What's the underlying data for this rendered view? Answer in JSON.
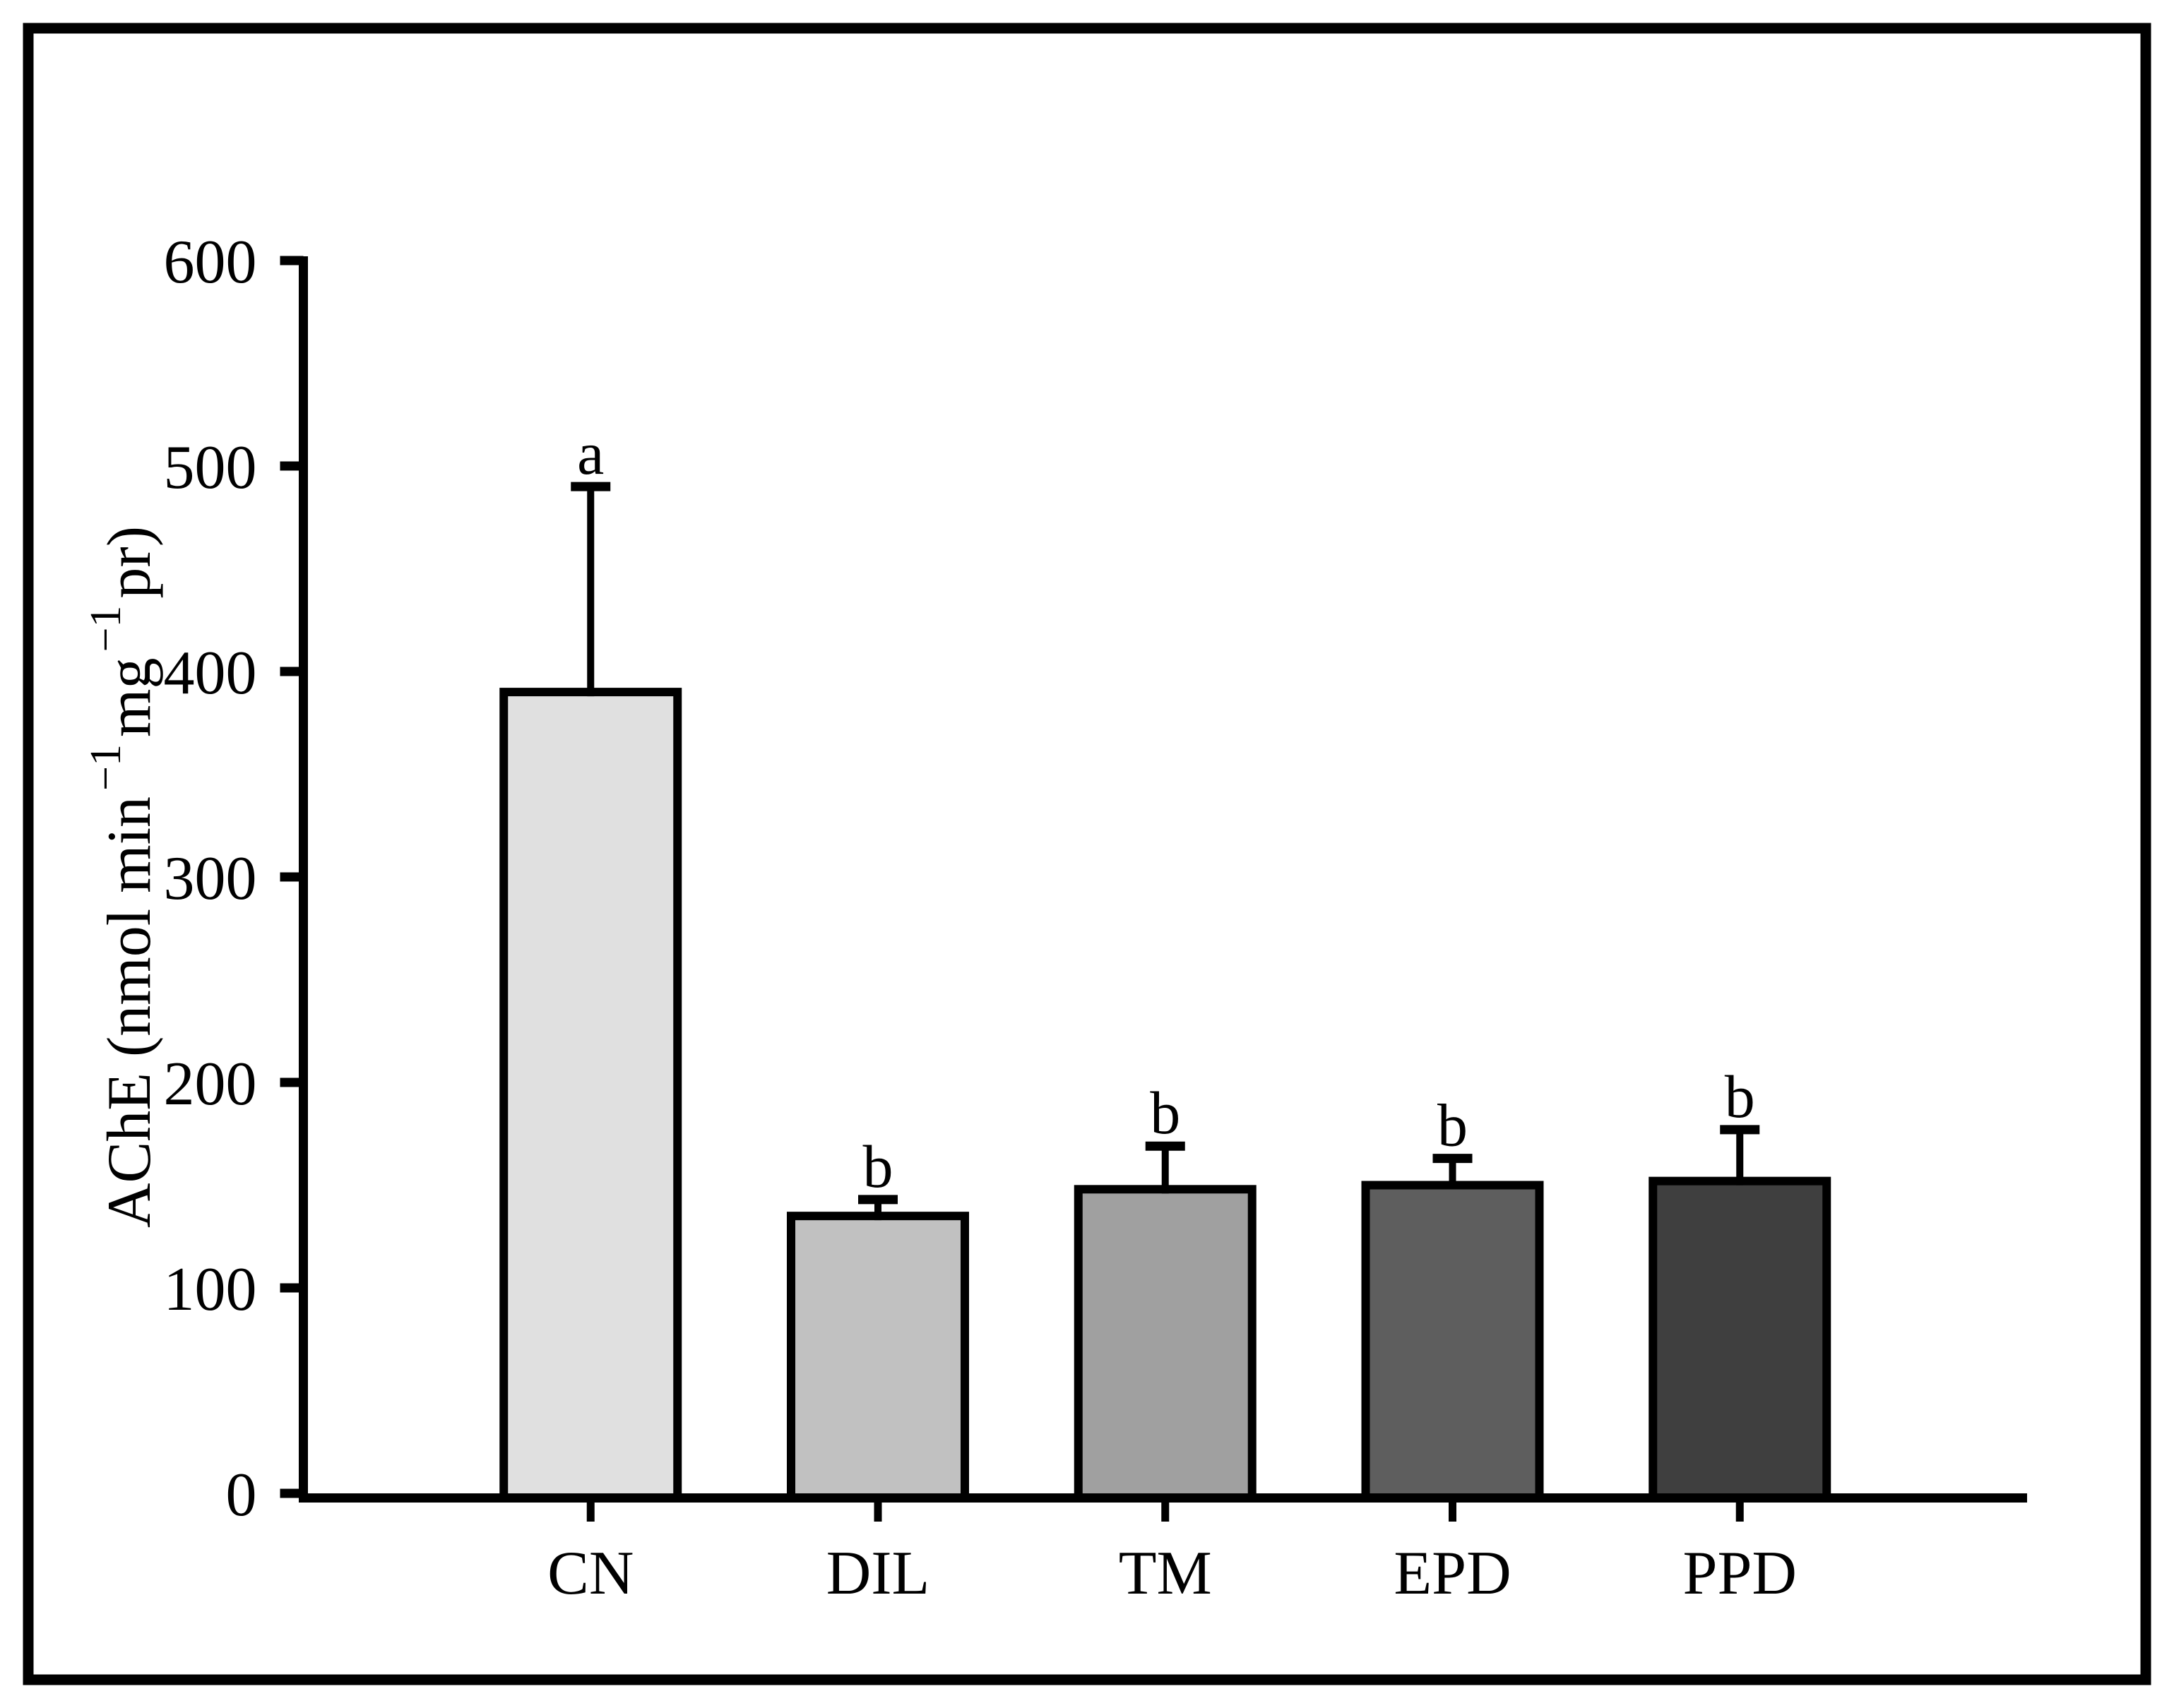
{
  "figure": {
    "background_color": "#ffffff",
    "border_color": "#000000"
  },
  "chart_data": {
    "type": "bar",
    "title": "",
    "categories": [
      "CN",
      "DIL",
      "TM",
      "EPD",
      "PPD"
    ],
    "values": [
      390,
      135,
      148,
      150,
      152
    ],
    "errors_up": [
      100,
      8,
      21,
      13,
      25
    ],
    "sig_letters": [
      "a",
      "b",
      "b",
      "b",
      "b"
    ],
    "bar_fill_colors": [
      "#e0e0e0",
      "#c1c1c1",
      "#a0a0a0",
      "#5e5e5e",
      "#3f3f3f"
    ],
    "bar_edge_color": "#000000",
    "axis_color": "#000000",
    "text_color": "#000000",
    "ylabel_plain": "AChE (nmol min−1 mg−1 pr)",
    "ylabel_parts": [
      {
        "text": "AChE (nmol min",
        "sup": false
      },
      {
        "text": "−1",
        "sup": true
      },
      {
        "text": "mg",
        "sup": false
      },
      {
        "text": "−1",
        "sup": true
      },
      {
        "text": "pr)",
        "sup": false
      }
    ],
    "yticks": [
      0,
      100,
      200,
      300,
      400,
      500,
      600
    ],
    "ylim": [
      0,
      600
    ],
    "xlabel": "",
    "grid": false,
    "legend": false
  }
}
